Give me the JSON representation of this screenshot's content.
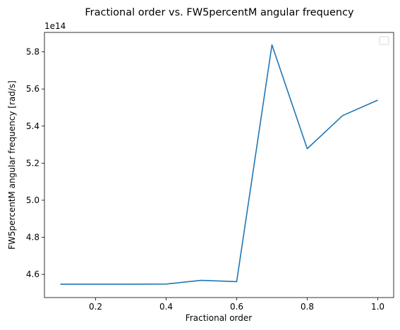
{
  "chart_data": {
    "type": "line",
    "title": "Fractional order vs. FW5percentM angular frequency",
    "xlabel": "Fractional order",
    "ylabel": "FW5percentM angular frequency [rad/s]",
    "y_offset_label": "1e14",
    "xlim": [
      0.055,
      1.045
    ],
    "ylim": [
      447500000000000.0,
      590500000000000.0
    ],
    "x_ticks": [
      0.2,
      0.4,
      0.6,
      0.8,
      1.0
    ],
    "x_tick_labels": [
      "0.2",
      "0.4",
      "0.6",
      "0.8",
      "1.0"
    ],
    "y_ticks": [
      460000000000000.0,
      480000000000000.0,
      500000000000000.0,
      520000000000000.0,
      540000000000000.0,
      560000000000000.0,
      580000000000000.0
    ],
    "y_tick_labels": [
      "4.6",
      "4.8",
      "5.0",
      "5.2",
      "5.4",
      "5.6",
      "5.8"
    ],
    "grid": false,
    "legend": "upper right (empty)",
    "colors": {
      "line": "#1f77b4"
    },
    "series": [
      {
        "x": [
          0.1,
          0.2,
          0.3,
          0.4,
          0.5,
          0.6,
          0.7,
          0.8,
          0.9,
          1.0
        ],
        "y": [
          454700000000000.0,
          454700000000000.0,
          454700000000000.0,
          454800000000000.0,
          456800000000000.0,
          456100000000000.0,
          583800000000000.0,
          527800000000000.0,
          545600000000000.0,
          554000000000000.0
        ]
      }
    ]
  }
}
